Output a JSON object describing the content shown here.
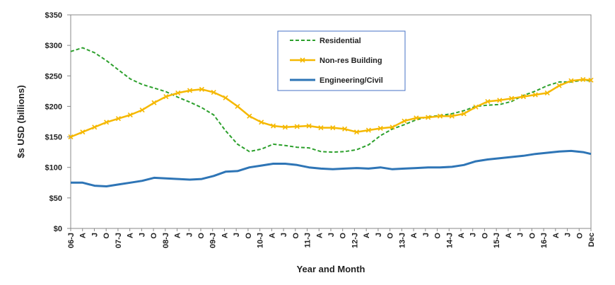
{
  "chart_data": {
    "type": "line",
    "xlabel": "Year and Month",
    "ylabel": "$s USD (billions)",
    "ylim": [
      0,
      350
    ],
    "yticks": [
      0,
      50,
      100,
      150,
      200,
      250,
      300,
      350
    ],
    "ytick_labels": [
      "$0",
      "$50",
      "$100",
      "$150",
      "$200",
      "$250",
      "$300",
      "$350"
    ],
    "grid": false,
    "legend_position": "top-center",
    "x_start": "2006-01",
    "x_end": "2016-12",
    "xtick_labels": [
      "06-J",
      "A",
      "J",
      "O",
      "07-J",
      "A",
      "J",
      "O",
      "08-J",
      "A",
      "J",
      "O",
      "09-J",
      "A",
      "J",
      "O",
      "10-J",
      "A",
      "J",
      "O",
      "11-J",
      "A",
      "J",
      "O",
      "12-J",
      "A",
      "J",
      "O",
      "13-J",
      "A",
      "J",
      "O",
      "14-J",
      "A",
      "J",
      "O",
      "15-J",
      "A",
      "J",
      "O",
      "16-J",
      "A",
      "J",
      "O",
      "Dec"
    ],
    "series": [
      {
        "name": "Residential",
        "color": "#2ca02c",
        "style": "dashed",
        "values": [
          {
            "x": "2006-01",
            "y": 290
          },
          {
            "x": "2006-04",
            "y": 296
          },
          {
            "x": "2006-07",
            "y": 288
          },
          {
            "x": "2006-10",
            "y": 275
          },
          {
            "x": "2007-01",
            "y": 260
          },
          {
            "x": "2007-04",
            "y": 245
          },
          {
            "x": "2007-07",
            "y": 236
          },
          {
            "x": "2007-10",
            "y": 230
          },
          {
            "x": "2008-01",
            "y": 224
          },
          {
            "x": "2008-04",
            "y": 215
          },
          {
            "x": "2008-07",
            "y": 207
          },
          {
            "x": "2008-10",
            "y": 198
          },
          {
            "x": "2009-01",
            "y": 186
          },
          {
            "x": "2009-04",
            "y": 160
          },
          {
            "x": "2009-07",
            "y": 138
          },
          {
            "x": "2009-10",
            "y": 126
          },
          {
            "x": "2010-01",
            "y": 130
          },
          {
            "x": "2010-04",
            "y": 138
          },
          {
            "x": "2010-07",
            "y": 136
          },
          {
            "x": "2010-10",
            "y": 133
          },
          {
            "x": "2011-01",
            "y": 132
          },
          {
            "x": "2011-04",
            "y": 126
          },
          {
            "x": "2011-07",
            "y": 125
          },
          {
            "x": "2011-10",
            "y": 126
          },
          {
            "x": "2012-01",
            "y": 129
          },
          {
            "x": "2012-04",
            "y": 137
          },
          {
            "x": "2012-07",
            "y": 152
          },
          {
            "x": "2012-10",
            "y": 163
          },
          {
            "x": "2013-01",
            "y": 170
          },
          {
            "x": "2013-04",
            "y": 178
          },
          {
            "x": "2013-07",
            "y": 183
          },
          {
            "x": "2013-10",
            "y": 185
          },
          {
            "x": "2014-01",
            "y": 188
          },
          {
            "x": "2014-04",
            "y": 193
          },
          {
            "x": "2014-07",
            "y": 200
          },
          {
            "x": "2014-10",
            "y": 202
          },
          {
            "x": "2015-01",
            "y": 203
          },
          {
            "x": "2015-04",
            "y": 208
          },
          {
            "x": "2015-07",
            "y": 218
          },
          {
            "x": "2015-10",
            "y": 225
          },
          {
            "x": "2016-01",
            "y": 234
          },
          {
            "x": "2016-04",
            "y": 240
          },
          {
            "x": "2016-07",
            "y": 240
          },
          {
            "x": "2016-10",
            "y": 243
          },
          {
            "x": "2016-12",
            "y": 242
          }
        ]
      },
      {
        "name": "Non-res Building",
        "color": "#f5b800",
        "style": "solid-markers",
        "values": [
          {
            "x": "2006-01",
            "y": 150
          },
          {
            "x": "2006-04",
            "y": 158
          },
          {
            "x": "2006-07",
            "y": 166
          },
          {
            "x": "2006-10",
            "y": 174
          },
          {
            "x": "2007-01",
            "y": 180
          },
          {
            "x": "2007-04",
            "y": 186
          },
          {
            "x": "2007-07",
            "y": 194
          },
          {
            "x": "2007-10",
            "y": 206
          },
          {
            "x": "2008-01",
            "y": 216
          },
          {
            "x": "2008-04",
            "y": 222
          },
          {
            "x": "2008-07",
            "y": 226
          },
          {
            "x": "2008-10",
            "y": 228
          },
          {
            "x": "2009-01",
            "y": 223
          },
          {
            "x": "2009-04",
            "y": 214
          },
          {
            "x": "2009-07",
            "y": 200
          },
          {
            "x": "2009-10",
            "y": 184
          },
          {
            "x": "2010-01",
            "y": 174
          },
          {
            "x": "2010-04",
            "y": 168
          },
          {
            "x": "2010-07",
            "y": 166
          },
          {
            "x": "2010-10",
            "y": 167
          },
          {
            "x": "2011-01",
            "y": 168
          },
          {
            "x": "2011-04",
            "y": 165
          },
          {
            "x": "2011-07",
            "y": 165
          },
          {
            "x": "2011-10",
            "y": 163
          },
          {
            "x": "2012-01",
            "y": 158
          },
          {
            "x": "2012-04",
            "y": 161
          },
          {
            "x": "2012-07",
            "y": 164
          },
          {
            "x": "2012-10",
            "y": 166
          },
          {
            "x": "2013-01",
            "y": 176
          },
          {
            "x": "2013-04",
            "y": 181
          },
          {
            "x": "2013-07",
            "y": 182
          },
          {
            "x": "2013-10",
            "y": 184
          },
          {
            "x": "2014-01",
            "y": 184
          },
          {
            "x": "2014-04",
            "y": 188
          },
          {
            "x": "2014-07",
            "y": 199
          },
          {
            "x": "2014-10",
            "y": 208
          },
          {
            "x": "2015-01",
            "y": 210
          },
          {
            "x": "2015-04",
            "y": 213
          },
          {
            "x": "2015-07",
            "y": 216
          },
          {
            "x": "2015-10",
            "y": 219
          },
          {
            "x": "2016-01",
            "y": 222
          },
          {
            "x": "2016-04",
            "y": 234
          },
          {
            "x": "2016-07",
            "y": 242
          },
          {
            "x": "2016-10",
            "y": 244
          },
          {
            "x": "2016-12",
            "y": 243
          }
        ]
      },
      {
        "name": "Engineering/Civil",
        "color": "#2e75b6",
        "style": "solid",
        "values": [
          {
            "x": "2006-01",
            "y": 75
          },
          {
            "x": "2006-04",
            "y": 75
          },
          {
            "x": "2006-07",
            "y": 70
          },
          {
            "x": "2006-10",
            "y": 69
          },
          {
            "x": "2007-01",
            "y": 72
          },
          {
            "x": "2007-04",
            "y": 75
          },
          {
            "x": "2007-07",
            "y": 78
          },
          {
            "x": "2007-10",
            "y": 83
          },
          {
            "x": "2008-01",
            "y": 82
          },
          {
            "x": "2008-04",
            "y": 81
          },
          {
            "x": "2008-07",
            "y": 80
          },
          {
            "x": "2008-10",
            "y": 81
          },
          {
            "x": "2009-01",
            "y": 86
          },
          {
            "x": "2009-04",
            "y": 93
          },
          {
            "x": "2009-07",
            "y": 94
          },
          {
            "x": "2009-10",
            "y": 100
          },
          {
            "x": "2010-01",
            "y": 103
          },
          {
            "x": "2010-04",
            "y": 106
          },
          {
            "x": "2010-07",
            "y": 106
          },
          {
            "x": "2010-10",
            "y": 104
          },
          {
            "x": "2011-01",
            "y": 100
          },
          {
            "x": "2011-04",
            "y": 98
          },
          {
            "x": "2011-07",
            "y": 97
          },
          {
            "x": "2011-10",
            "y": 98
          },
          {
            "x": "2012-01",
            "y": 99
          },
          {
            "x": "2012-04",
            "y": 98
          },
          {
            "x": "2012-07",
            "y": 100
          },
          {
            "x": "2012-10",
            "y": 97
          },
          {
            "x": "2013-01",
            "y": 98
          },
          {
            "x": "2013-04",
            "y": 99
          },
          {
            "x": "2013-07",
            "y": 100
          },
          {
            "x": "2013-10",
            "y": 100
          },
          {
            "x": "2014-01",
            "y": 101
          },
          {
            "x": "2014-04",
            "y": 104
          },
          {
            "x": "2014-07",
            "y": 110
          },
          {
            "x": "2014-10",
            "y": 113
          },
          {
            "x": "2015-01",
            "y": 115
          },
          {
            "x": "2015-04",
            "y": 117
          },
          {
            "x": "2015-07",
            "y": 119
          },
          {
            "x": "2015-10",
            "y": 122
          },
          {
            "x": "2016-01",
            "y": 124
          },
          {
            "x": "2016-04",
            "y": 126
          },
          {
            "x": "2016-07",
            "y": 127
          },
          {
            "x": "2016-10",
            "y": 125
          },
          {
            "x": "2016-12",
            "y": 122
          }
        ]
      }
    ]
  }
}
